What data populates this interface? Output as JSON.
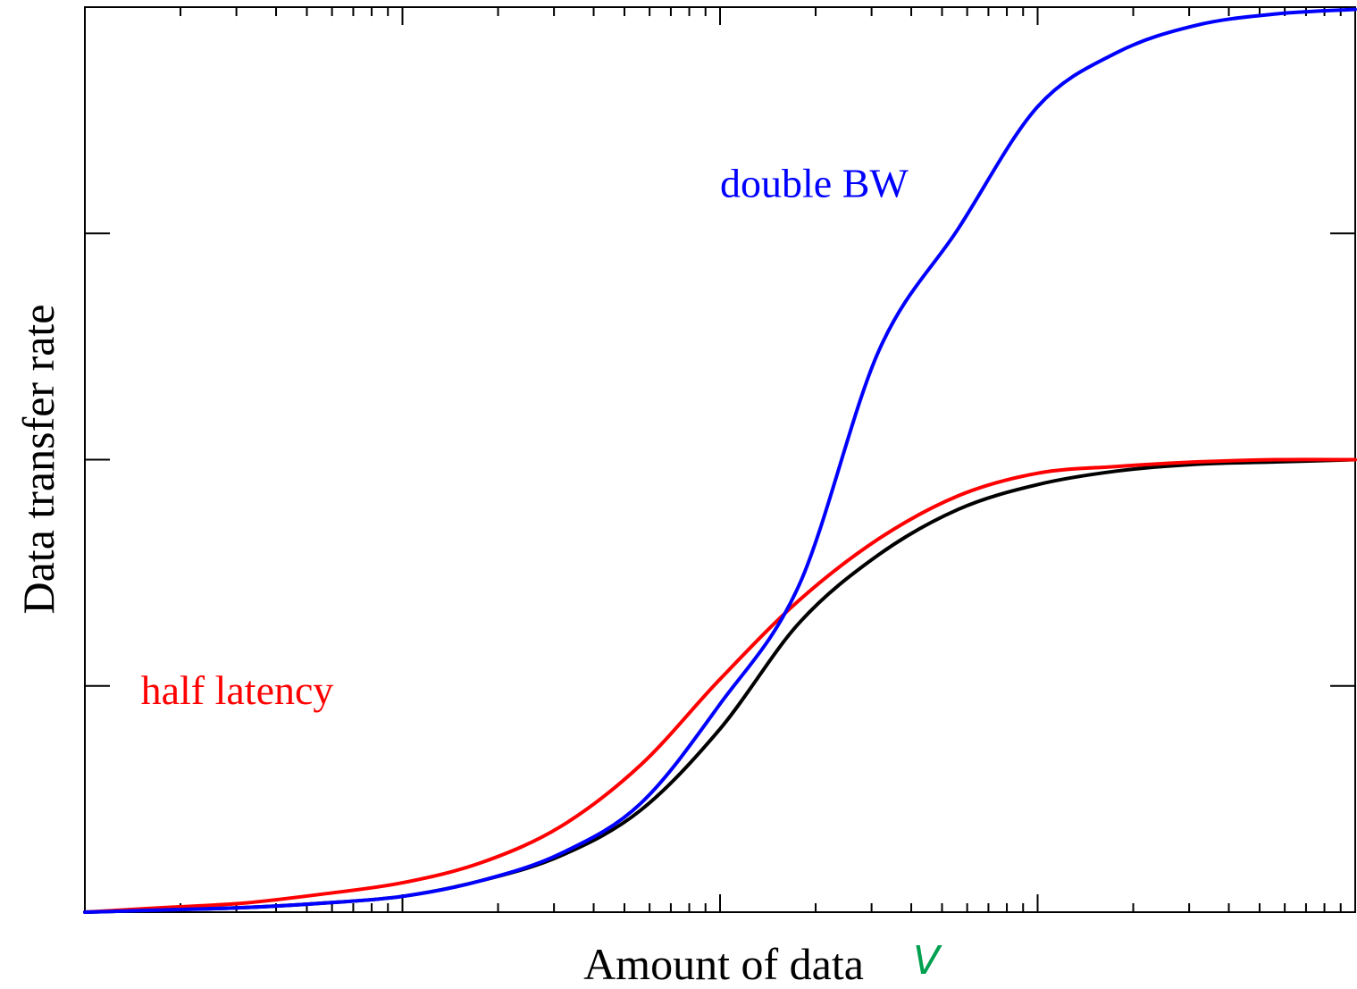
{
  "chart_data": {
    "type": "line",
    "xlabel": "Amount of data",
    "xlabel_variable": "V",
    "ylabel": "Data transfer rate",
    "xscale": "log",
    "xlim": [
      1,
      10000
    ],
    "ylim": [
      0,
      4
    ],
    "grid": false,
    "legend": "none",
    "x": [
      1,
      1.78,
      3.16,
      5.62,
      10,
      17.8,
      31.6,
      56.2,
      100,
      178,
      316,
      562,
      1000,
      1780,
      3160,
      5620,
      10000
    ],
    "series": [
      {
        "color": "#000000",
        "values": [
          0.0,
          0.01,
          0.02,
          0.04,
          0.07,
          0.14,
          0.25,
          0.45,
          0.81,
          1.28,
          1.58,
          1.78,
          1.89,
          1.95,
          1.98,
          1.99,
          2.0
        ]
      },
      {
        "color": "#ff0000",
        "values": [
          0.0,
          0.02,
          0.04,
          0.08,
          0.13,
          0.22,
          0.38,
          0.65,
          1.03,
          1.38,
          1.65,
          1.84,
          1.94,
          1.97,
          1.99,
          2.0,
          2.0
        ]
      },
      {
        "color": "#0000ff",
        "values": [
          0.0,
          0.01,
          0.02,
          0.04,
          0.07,
          0.14,
          0.26,
          0.48,
          0.92,
          1.45,
          2.48,
          3.02,
          3.56,
          3.8,
          3.92,
          3.97,
          3.99
        ]
      }
    ],
    "annotations": [
      {
        "text": "double BW",
        "color": "#0000ff",
        "x": 100,
        "y": 3.16
      },
      {
        "text": "half latency",
        "color": "#ff0000",
        "x": 1.5,
        "y": 0.92
      }
    ]
  }
}
